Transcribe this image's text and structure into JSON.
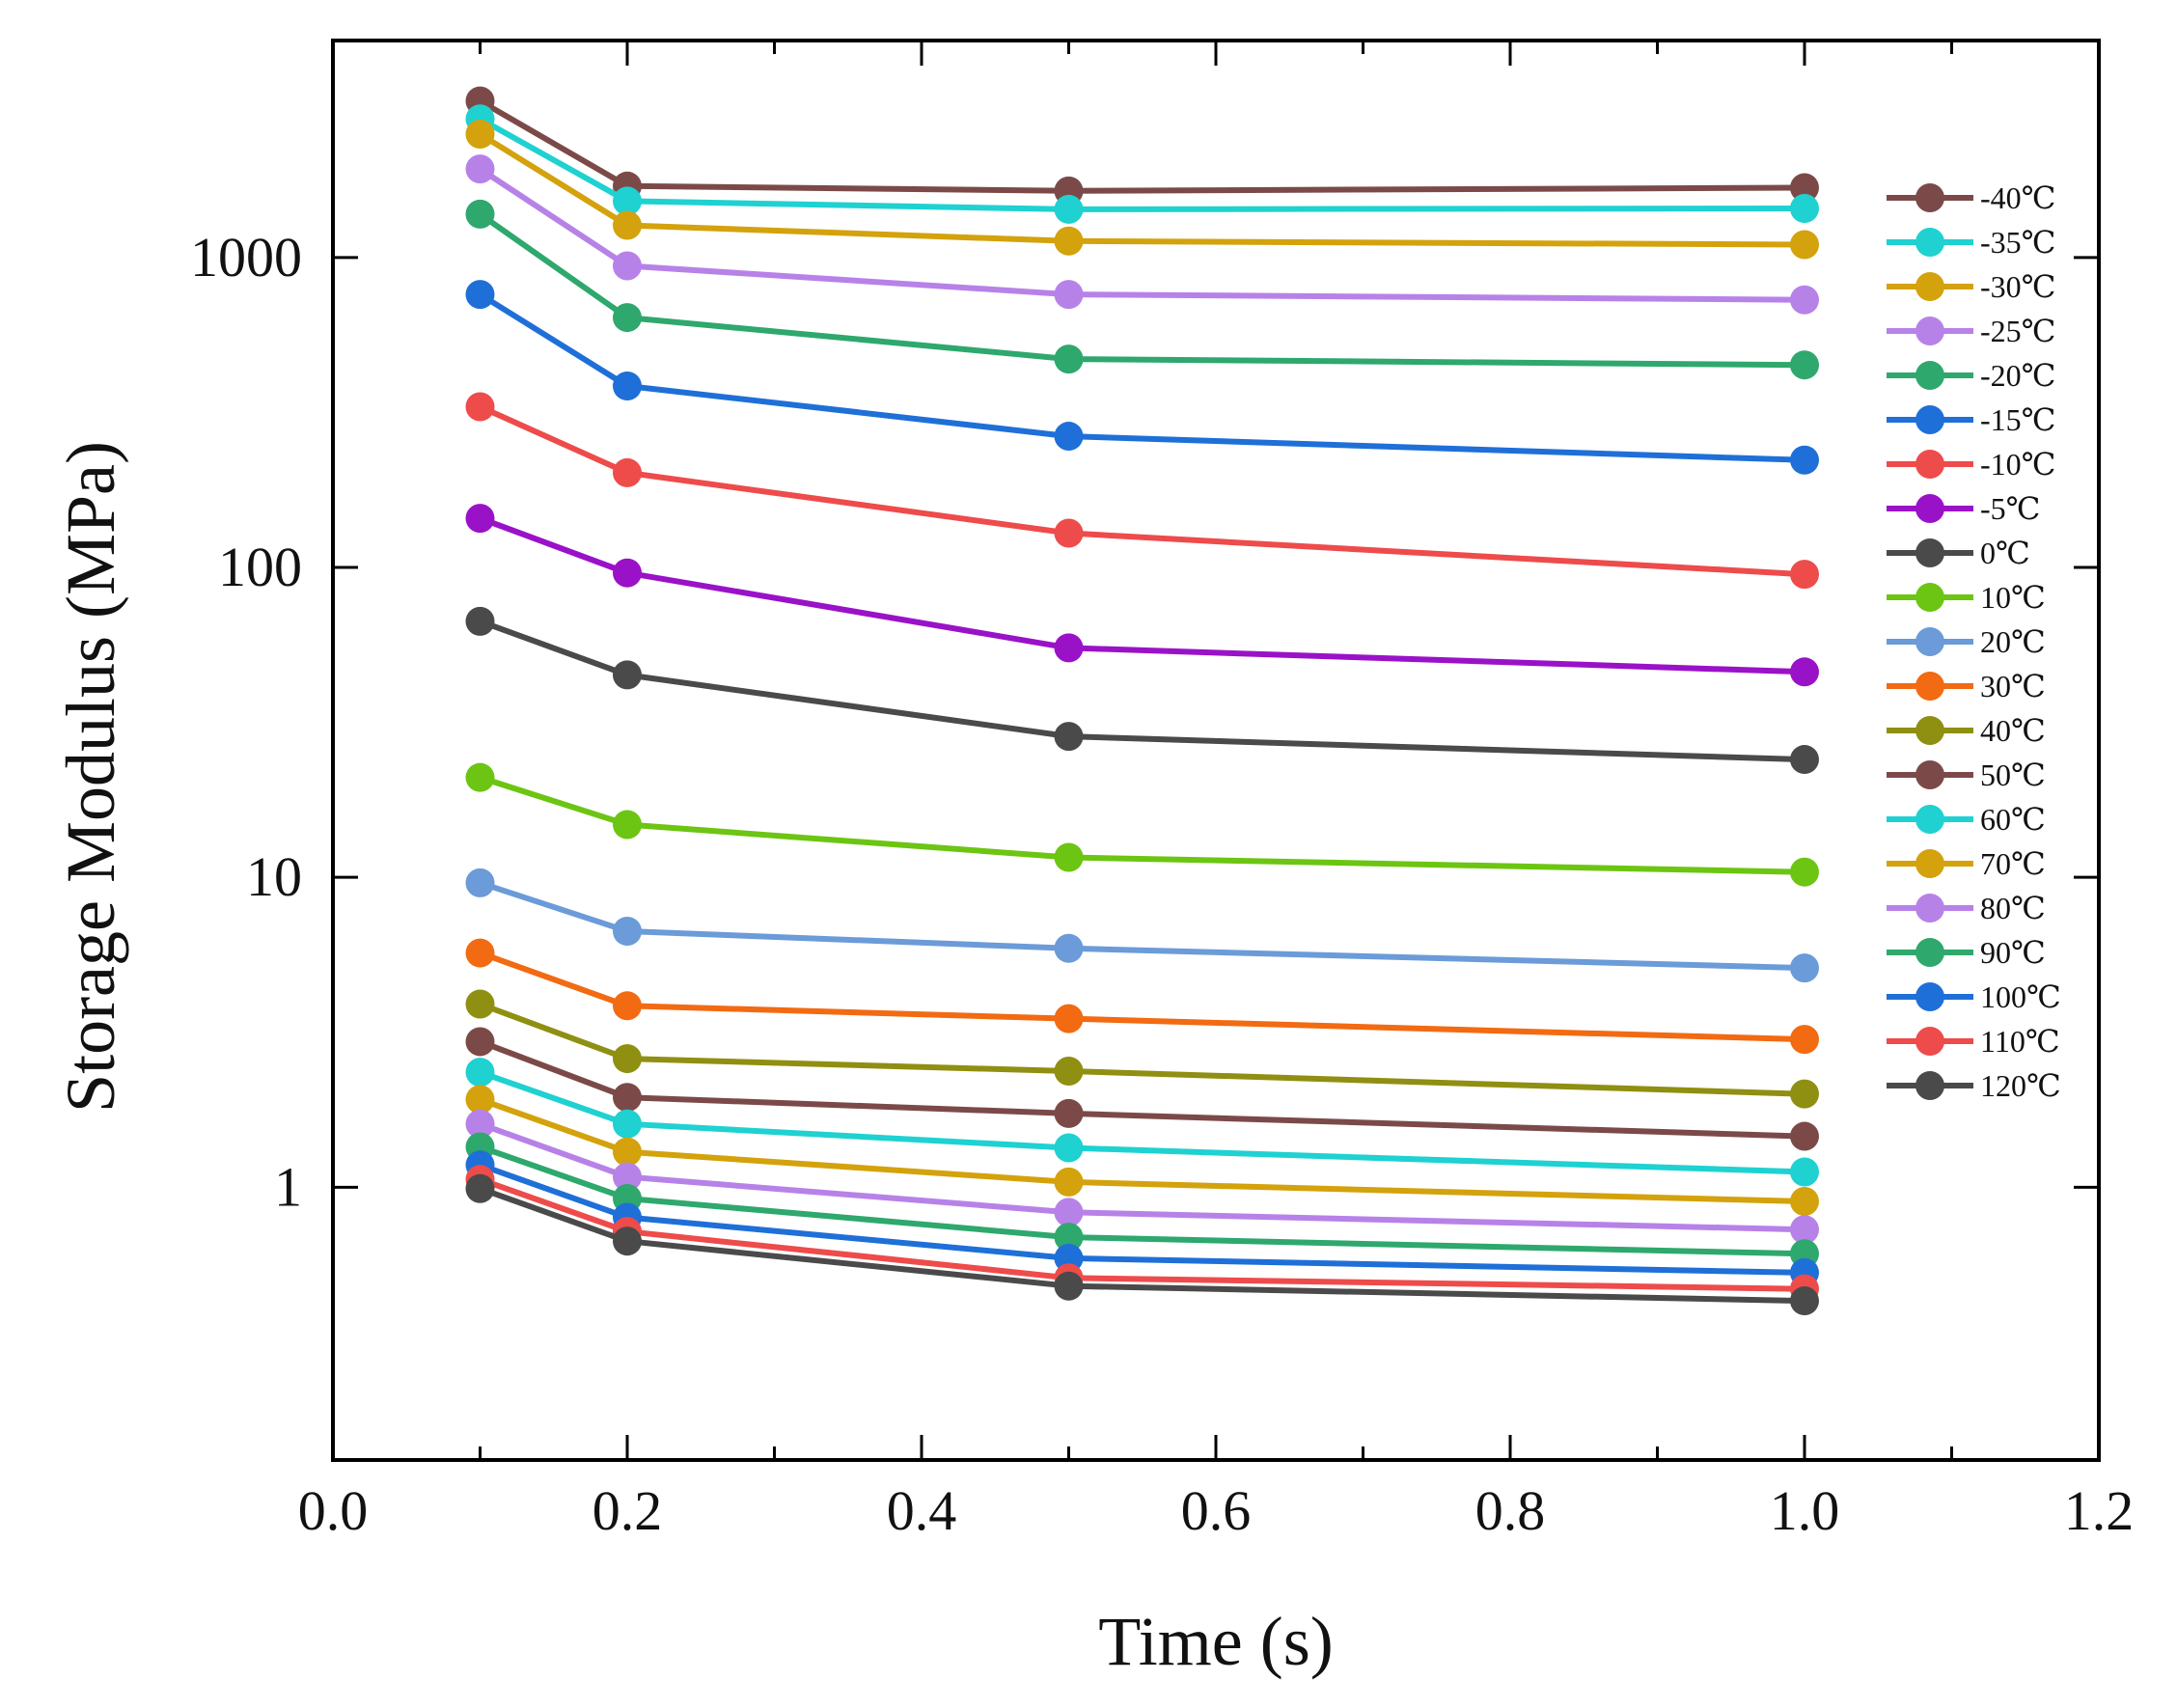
{
  "chart_data": {
    "type": "line",
    "title": "",
    "xlabel": "Time (s)",
    "ylabel": "Storage Modulus (MPa)",
    "xlim": [
      0.0,
      1.2
    ],
    "ylim": [
      0.1318,
      5012
    ],
    "yscale": "log",
    "grid": false,
    "legend_position": "top-right",
    "x": [
      0.1,
      0.2,
      0.5,
      1.0
    ],
    "x_ticks": [
      "0.0",
      "0.2",
      "0.4",
      "0.6",
      "0.8",
      "1.0",
      "1.2"
    ],
    "y_ticks": [
      "1",
      "10",
      "100",
      "1000"
    ],
    "series": [
      {
        "name": "-40℃",
        "color": "#7b4a48",
        "values": [
          3200,
          1700,
          1640,
          1680
        ]
      },
      {
        "name": "-35℃",
        "color": "#1fd1d1",
        "values": [
          2800,
          1520,
          1430,
          1440
        ]
      },
      {
        "name": "-30℃",
        "color": "#d3a20c",
        "values": [
          2500,
          1270,
          1130,
          1100
        ]
      },
      {
        "name": "-25℃",
        "color": "#b782e8",
        "values": [
          1930,
          940,
          760,
          730
        ]
      },
      {
        "name": "-20℃",
        "color": "#2ea86c",
        "values": [
          1380,
          640,
          470,
          450
        ]
      },
      {
        "name": "-15℃",
        "color": "#1f6fd8",
        "values": [
          760,
          385,
          265,
          222
        ]
      },
      {
        "name": "-10℃",
        "color": "#ee4b4b",
        "values": [
          330,
          202,
          129,
          95
        ]
      },
      {
        "name": "-5℃",
        "color": "#9a12c8",
        "values": [
          144,
          96,
          55,
          46
        ]
      },
      {
        "name": "0℃",
        "color": "#4a4a4a",
        "values": [
          67,
          45,
          28.5,
          24
        ]
      },
      {
        "name": "10℃",
        "color": "#6cc512",
        "values": [
          21,
          14.8,
          11.6,
          10.4
        ]
      },
      {
        "name": "20℃",
        "color": "#6b9bd8",
        "values": [
          9.6,
          6.7,
          5.9,
          5.1
        ]
      },
      {
        "name": "30℃",
        "color": "#f26a12",
        "values": [
          5.7,
          3.85,
          3.5,
          3.0
        ]
      },
      {
        "name": "40℃",
        "color": "#8f8f12",
        "values": [
          3.9,
          2.6,
          2.37,
          2.0
        ]
      },
      {
        "name": "50℃",
        "color": "#7b4a48",
        "values": [
          2.95,
          1.95,
          1.73,
          1.46
        ]
      },
      {
        "name": "60℃",
        "color": "#1fd1d1",
        "values": [
          2.35,
          1.6,
          1.34,
          1.12
        ]
      },
      {
        "name": "70℃",
        "color": "#d3a20c",
        "values": [
          1.92,
          1.3,
          1.04,
          0.9
        ]
      },
      {
        "name": "80℃",
        "color": "#b782e8",
        "values": [
          1.6,
          1.08,
          0.83,
          0.73
        ]
      },
      {
        "name": "90℃",
        "color": "#2ea86c",
        "values": [
          1.35,
          0.92,
          0.69,
          0.61
        ]
      },
      {
        "name": "100℃",
        "color": "#1f6fd8",
        "values": [
          1.18,
          0.8,
          0.59,
          0.53
        ]
      },
      {
        "name": "110℃",
        "color": "#ee4b4b",
        "values": [
          1.06,
          0.72,
          0.51,
          0.47
        ]
      },
      {
        "name": "120℃",
        "color": "#4a4a4a",
        "values": [
          0.99,
          0.67,
          0.48,
          0.43
        ]
      }
    ]
  }
}
